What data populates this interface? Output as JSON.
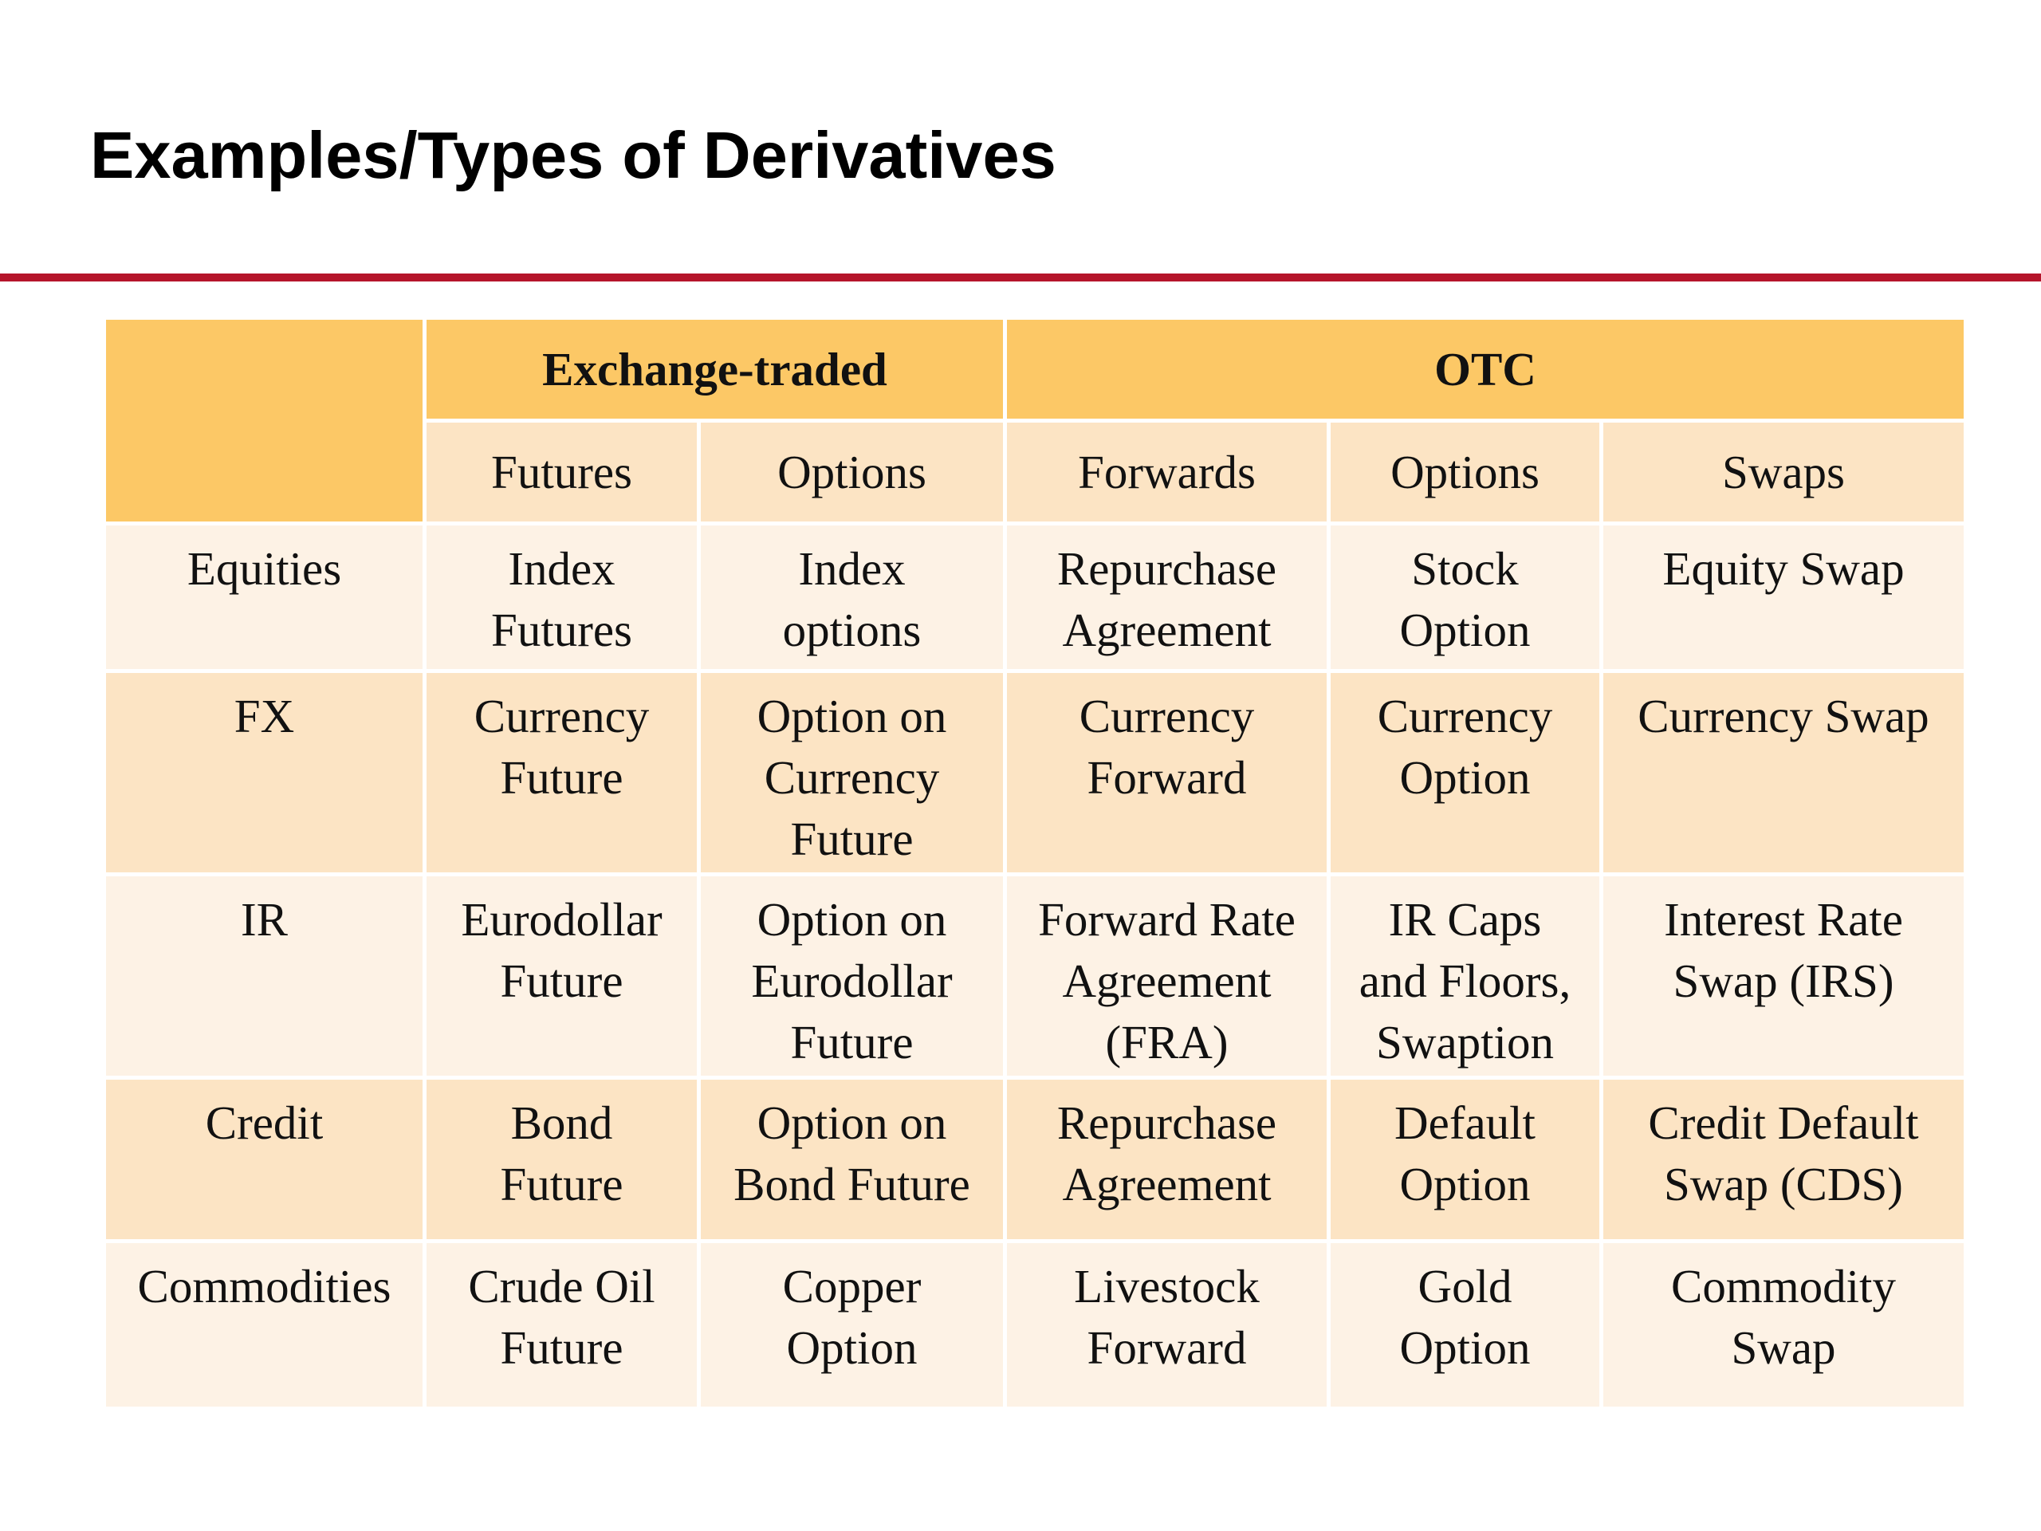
{
  "slide": {
    "title": "Examples/Types of Derivatives"
  },
  "table": {
    "groups": {
      "exchange_traded": "Exchange-traded",
      "otc": "OTC"
    },
    "columns": [
      "Futures",
      "Options",
      "Forwards",
      "Options",
      "Swaps"
    ],
    "rows": [
      {
        "label": "Equities",
        "cells": [
          [
            "Index",
            "Futures"
          ],
          [
            "Index",
            "options"
          ],
          [
            "Repurchase",
            "Agreement"
          ],
          [
            "Stock",
            "Option"
          ],
          [
            "Equity Swap"
          ]
        ]
      },
      {
        "label": "FX",
        "cells": [
          [
            "Currency",
            "Future"
          ],
          [
            "Option on",
            "Currency",
            "Future"
          ],
          [
            "Currency",
            "Forward"
          ],
          [
            "Currency",
            "Option"
          ],
          [
            "Currency Swap"
          ]
        ]
      },
      {
        "label": "IR",
        "cells": [
          [
            "Eurodollar",
            "Future"
          ],
          [
            "Option on",
            "Eurodollar",
            "Future"
          ],
          [
            "Forward Rate",
            "Agreement",
            "(FRA)"
          ],
          [
            "IR Caps",
            "and Floors,",
            "Swaption"
          ],
          [
            "Interest Rate",
            "Swap (IRS)"
          ]
        ]
      },
      {
        "label": "Credit",
        "cells": [
          [
            "Bond",
            "Future"
          ],
          [
            "Option on",
            "Bond Future"
          ],
          [
            "Repurchase",
            "Agreement"
          ],
          [
            "Default",
            "Option"
          ],
          [
            "Credit Default",
            "Swap (CDS)"
          ]
        ]
      },
      {
        "label": "Commodities",
        "cells": [
          [
            "Crude Oil",
            "Future"
          ],
          [
            "Copper",
            "Option"
          ],
          [
            "Livestock",
            "Forward"
          ],
          [
            "Gold",
            "Option"
          ],
          [
            "Commodity",
            "Swap"
          ]
        ]
      }
    ]
  },
  "colors": {
    "accent_rule": "#b5152b",
    "header_fill": "#fcc866",
    "band_dark": "#fce4c4",
    "band_light": "#fdf2e5"
  }
}
